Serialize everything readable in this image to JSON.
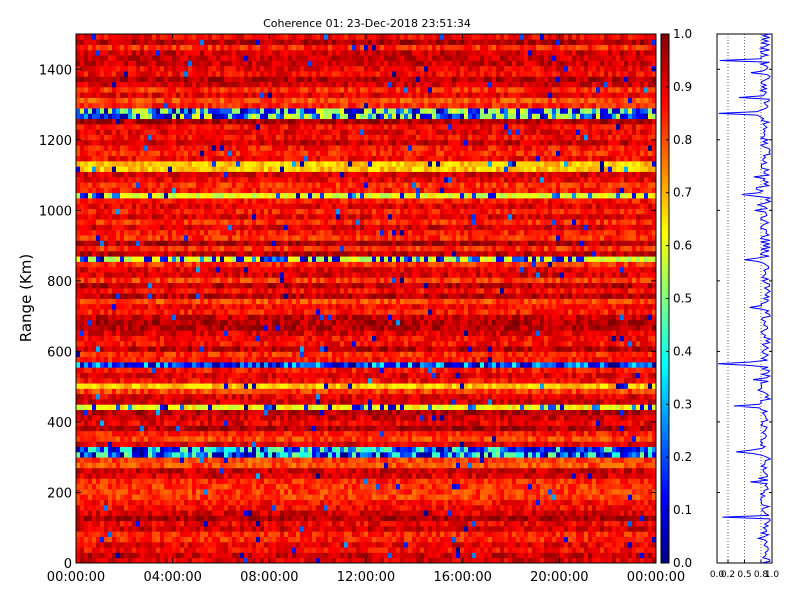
{
  "chart_data": [
    {
      "type": "heatmap",
      "title": "Coherence 01: 23-Dec-2018 23:51:34",
      "xlabel": "",
      "ylabel": "Range (Km)",
      "xlim": [
        "00:00:00",
        "24:00:00"
      ],
      "ylim": [
        0,
        1500
      ],
      "x_ticks": [
        "00:00:00",
        "04:00:00",
        "08:00:00",
        "12:00:00",
        "16:00:00",
        "20:00:00",
        "00:00:00"
      ],
      "y_ticks": [
        0,
        200,
        400,
        600,
        800,
        1000,
        1200,
        1400
      ],
      "colormap": "jet",
      "clim": [
        0,
        1
      ],
      "colorbar_ticks": [
        "0.0",
        "0.1",
        "0.2",
        "0.3",
        "0.4",
        "0.5",
        "0.6",
        "0.7",
        "0.8",
        "0.9",
        "1.0"
      ],
      "grid": false,
      "row_range_step_km": 15,
      "band_profile": [
        {
          "range_km": 1275,
          "mean": 0.55,
          "dip_prob": 0.55
        },
        {
          "range_km": 1125,
          "mean": 0.68,
          "dip_prob": 0.05
        },
        {
          "range_km": 1045,
          "mean": 0.6,
          "dip_prob": 0.25
        },
        {
          "range_km": 862,
          "mean": 0.58,
          "dip_prob": 0.35
        },
        {
          "range_km": 565,
          "mean": 0.35,
          "dip_prob": 0.8
        },
        {
          "range_km": 500,
          "mean": 0.68,
          "dip_prob": 0.1
        },
        {
          "range_km": 445,
          "mean": 0.62,
          "dip_prob": 0.2
        },
        {
          "range_km": 315,
          "mean": 0.45,
          "dip_prob": 0.65
        }
      ],
      "background_mean": 0.88
    },
    {
      "type": "line",
      "series": [
        {
          "values": "mean coherence per range gate (0-1) vs range 0-1500 km"
        }
      ],
      "xlim": [
        0,
        1
      ],
      "ylim": [
        0,
        1500
      ],
      "x_ticks": [
        "0.0",
        "0.2",
        "0.5",
        "0.8",
        "1.0"
      ],
      "reference_lines_x": [
        0.2,
        0.5,
        0.8
      ],
      "color": "#0000ff",
      "dips": [
        {
          "range_km": 1425,
          "value": 0.05
        },
        {
          "range_km": 1275,
          "value": 0.03
        },
        {
          "range_km": 1320,
          "value": 0.4
        },
        {
          "range_km": 1045,
          "value": 0.45
        },
        {
          "range_km": 862,
          "value": 0.5
        },
        {
          "range_km": 565,
          "value": 0.02
        },
        {
          "range_km": 445,
          "value": 0.45
        },
        {
          "range_km": 315,
          "value": 0.35
        },
        {
          "range_km": 130,
          "value": 0.1
        }
      ]
    }
  ]
}
